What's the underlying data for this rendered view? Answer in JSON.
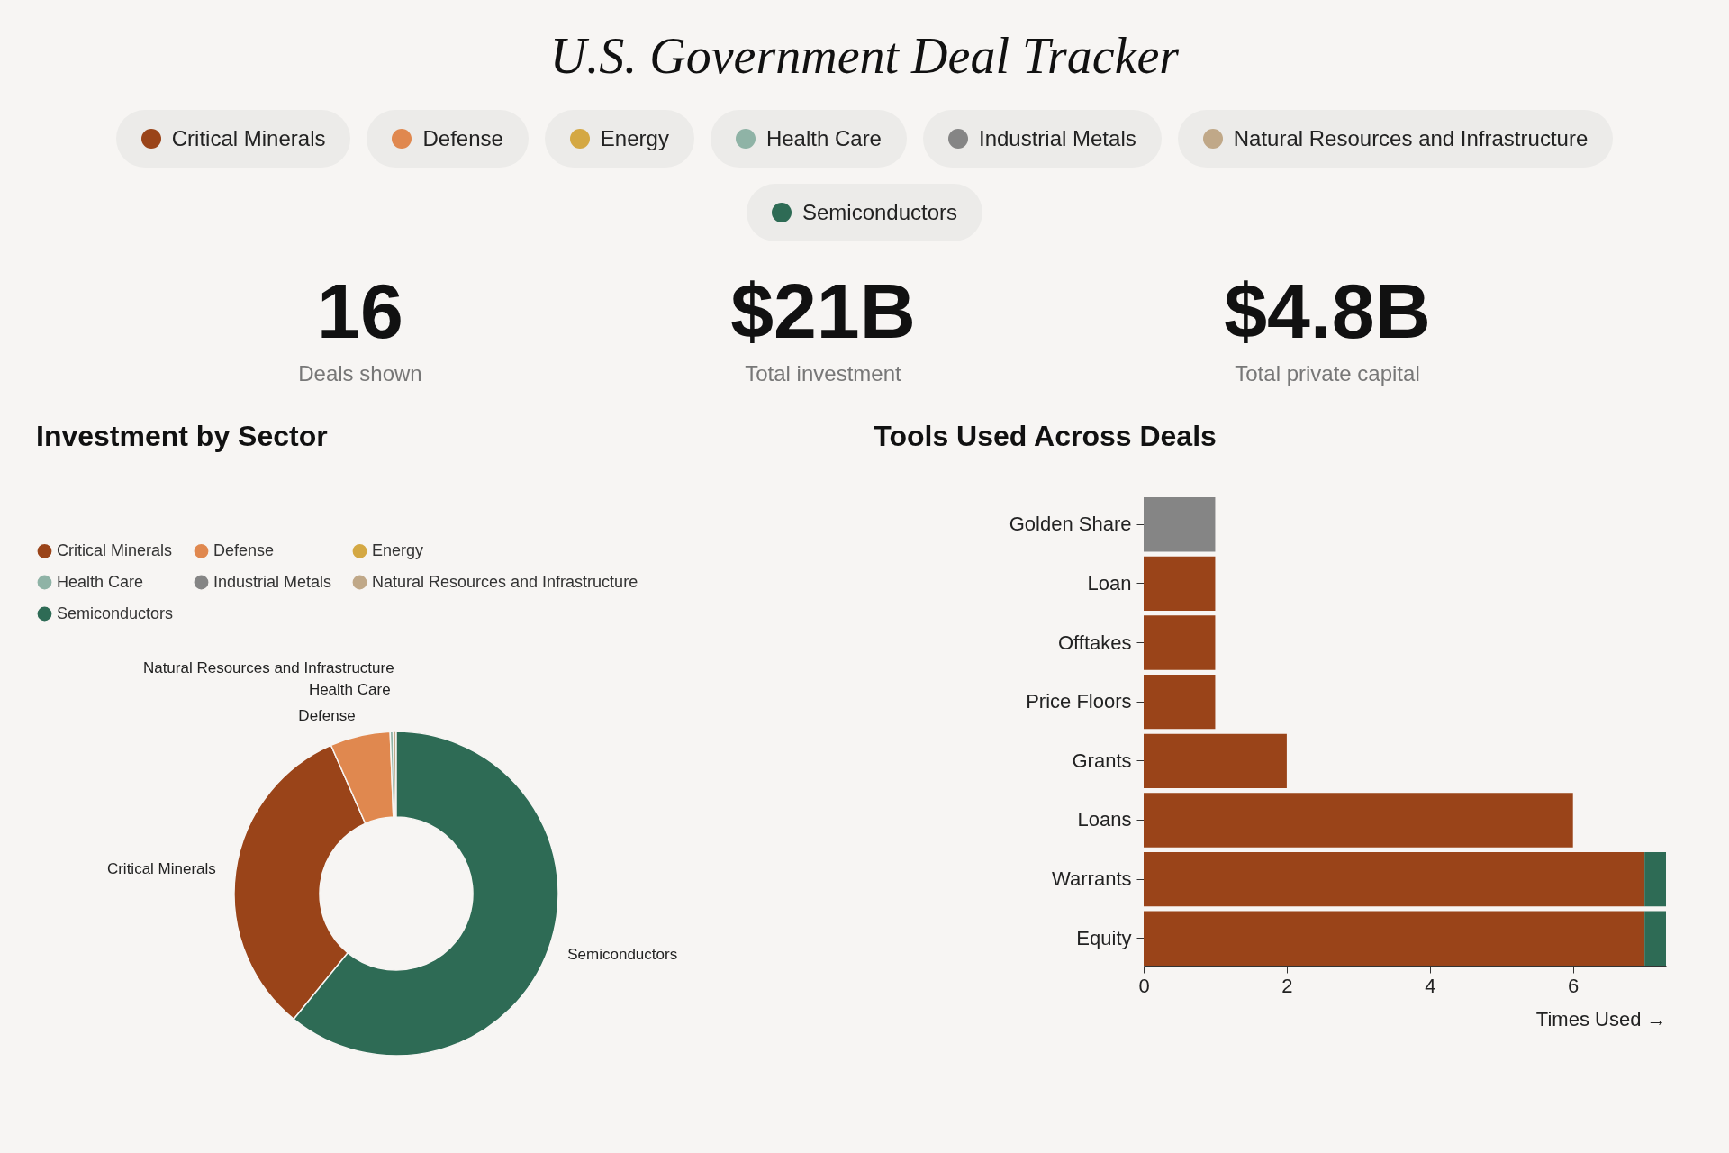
{
  "chart_data": [
    {
      "type": "other",
      "title": "U.S. Government Deal Tracker",
      "categories": [
        "Critical Minerals",
        "Defense",
        "Energy",
        "Health Care",
        "Industrial Metals",
        "Natural Resources and Infrastructure",
        "Semiconductors"
      ],
      "colors": [
        "#9a4419",
        "#e0884f",
        "#d4a843",
        "#8fb3a6",
        "#858585",
        "#c0a888",
        "#2e6b55"
      ],
      "annotations": [
        "16",
        "Deals shown",
        "$21B",
        "Total investment",
        "$4.8B",
        "Total private capital"
      ]
    },
    {
      "type": "donut",
      "title": "Investment by Sector",
      "categories": [
        "Critical Minerals",
        "Defense",
        "Energy",
        "Health Care",
        "Industrial Metals",
        "Natural Resources and Infrastructure",
        "Semiconductors"
      ],
      "values": [
        32.5,
        6.0,
        0,
        0.3,
        0,
        0.3,
        60.9
      ],
      "colors": [
        "#9a4419",
        "#e0884f",
        "#d4a843",
        "#8fb3a6",
        "#858585",
        "#c0a888",
        "#2e6b55"
      ],
      "legend": "top left"
    },
    {
      "type": "bar",
      "orientation": "horizontal",
      "stacked": true,
      "title": "Tools Used Across Deals",
      "xlabel": "Times Used →",
      "categories": [
        "Golden Share",
        "Loan",
        "Offtakes",
        "Price Floors",
        "Grants",
        "Loans",
        "Warrants",
        "Equity"
      ],
      "series": [
        {
          "color": "#9a4419",
          "values": [
            null,
            1,
            1,
            1,
            2,
            6,
            7,
            7
          ]
        },
        {
          "color": "#858585",
          "values": [
            1,
            null,
            null,
            null,
            null,
            null,
            null,
            null
          ]
        },
        {
          "color": "#2e6b55",
          "values": [
            null,
            null,
            null,
            null,
            null,
            null,
            0.3,
            0.3
          ]
        }
      ],
      "xlim": [
        0,
        7.3
      ],
      "xticks": [
        0,
        2,
        4,
        6
      ]
    }
  ]
}
